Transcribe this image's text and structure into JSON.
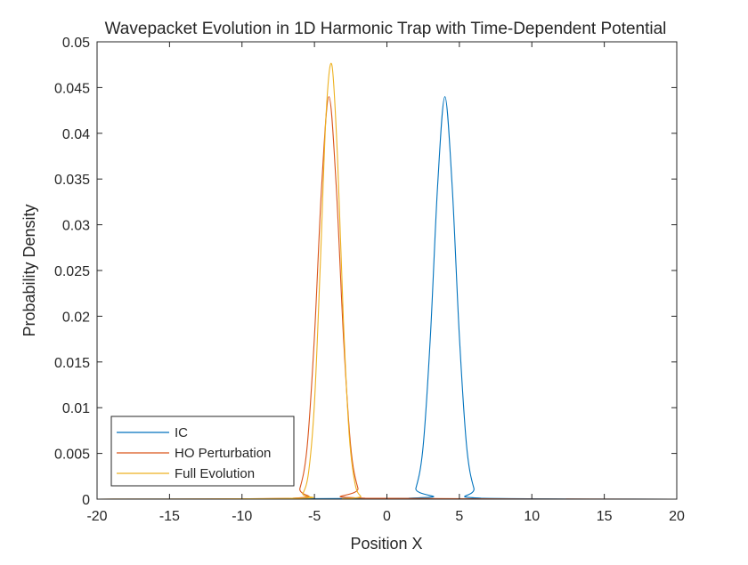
{
  "chart_data": {
    "type": "line",
    "title": "Wavepacket Evolution in 1D Harmonic Trap with Time-Dependent Potential",
    "xlabel": "Position X",
    "ylabel": "Probability Density",
    "xlim": [
      -20,
      20
    ],
    "ylim": [
      0,
      0.05
    ],
    "xticks": [
      -20,
      -15,
      -10,
      -5,
      0,
      5,
      10,
      15,
      20
    ],
    "xtick_labels": [
      "-20",
      "-15",
      "-10",
      "-5",
      "0",
      "5",
      "10",
      "15",
      "20"
    ],
    "yticks": [
      0,
      0.005,
      0.01,
      0.015,
      0.02,
      0.025,
      0.03,
      0.035,
      0.04,
      0.045,
      0.05
    ],
    "ytick_labels": [
      "0",
      "0.005",
      "0.01",
      "0.015",
      "0.02",
      "0.025",
      "0.03",
      "0.035",
      "0.04",
      "0.045",
      "0.05"
    ],
    "grid": false,
    "legend_position": "bottom-left",
    "series": [
      {
        "name": "IC",
        "color": "#0072BD",
        "x": [
          -20,
          1.5,
          2.0,
          2.5,
          3.0,
          3.5,
          4.0,
          4.5,
          5.0,
          5.5,
          6.0,
          6.5,
          20
        ],
        "y": [
          0,
          0.0001,
          0.0012,
          0.0058,
          0.0178,
          0.0343,
          0.044,
          0.0343,
          0.0178,
          0.0058,
          0.0012,
          0.0001,
          0
        ]
      },
      {
        "name": "HO Perturbation",
        "color": "#D95319",
        "x": [
          -20,
          -6.5,
          -6.0,
          -5.5,
          -5.0,
          -4.5,
          -4.0,
          -3.5,
          -3.0,
          -2.5,
          -2.0,
          -1.5,
          20
        ],
        "y": [
          0,
          0.0001,
          0.0012,
          0.0058,
          0.0178,
          0.0343,
          0.044,
          0.0343,
          0.0178,
          0.0058,
          0.0012,
          0.0001,
          0
        ]
      },
      {
        "name": "Full Evolution",
        "color": "#EDB120",
        "x": [
          -20,
          -6.2,
          -5.8,
          -5.4,
          -5.0,
          -4.6,
          -4.2,
          -3.8,
          -3.4,
          -3.0,
          -2.6,
          -2.2,
          -1.8,
          -1.4,
          20
        ],
        "y": [
          0,
          0.0001,
          0.0006,
          0.003,
          0.0105,
          0.0255,
          0.042,
          0.0475,
          0.037,
          0.0195,
          0.007,
          0.0017,
          0.0003,
          0,
          0
        ]
      }
    ]
  }
}
